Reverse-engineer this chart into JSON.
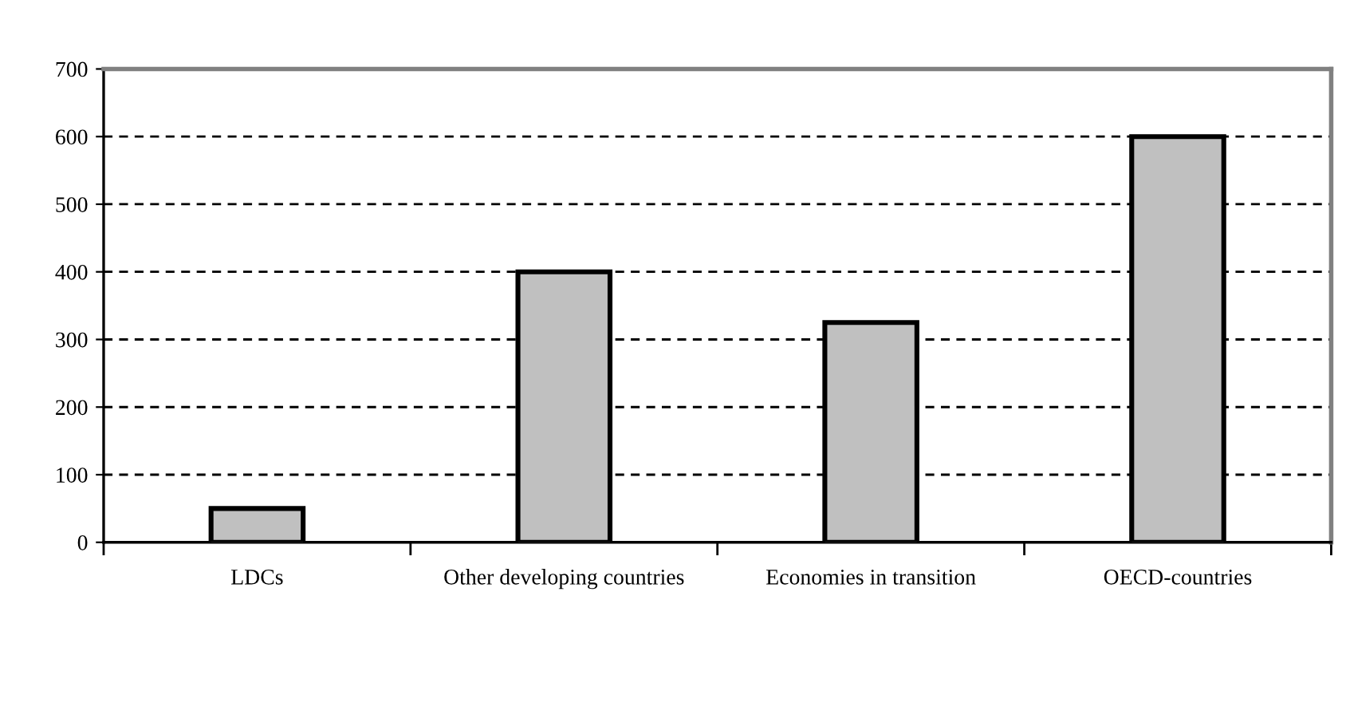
{
  "chart_data": {
    "type": "bar",
    "categories": [
      "LDCs",
      "Other developing countries",
      "Economies in transition",
      "OECD-countries"
    ],
    "values": [
      50,
      400,
      325,
      600
    ],
    "color": "#c0c0c0",
    "ylim": [
      0,
      700
    ],
    "yticks": [
      0,
      100,
      200,
      300,
      400,
      500,
      600,
      700
    ],
    "grid": "y"
  }
}
